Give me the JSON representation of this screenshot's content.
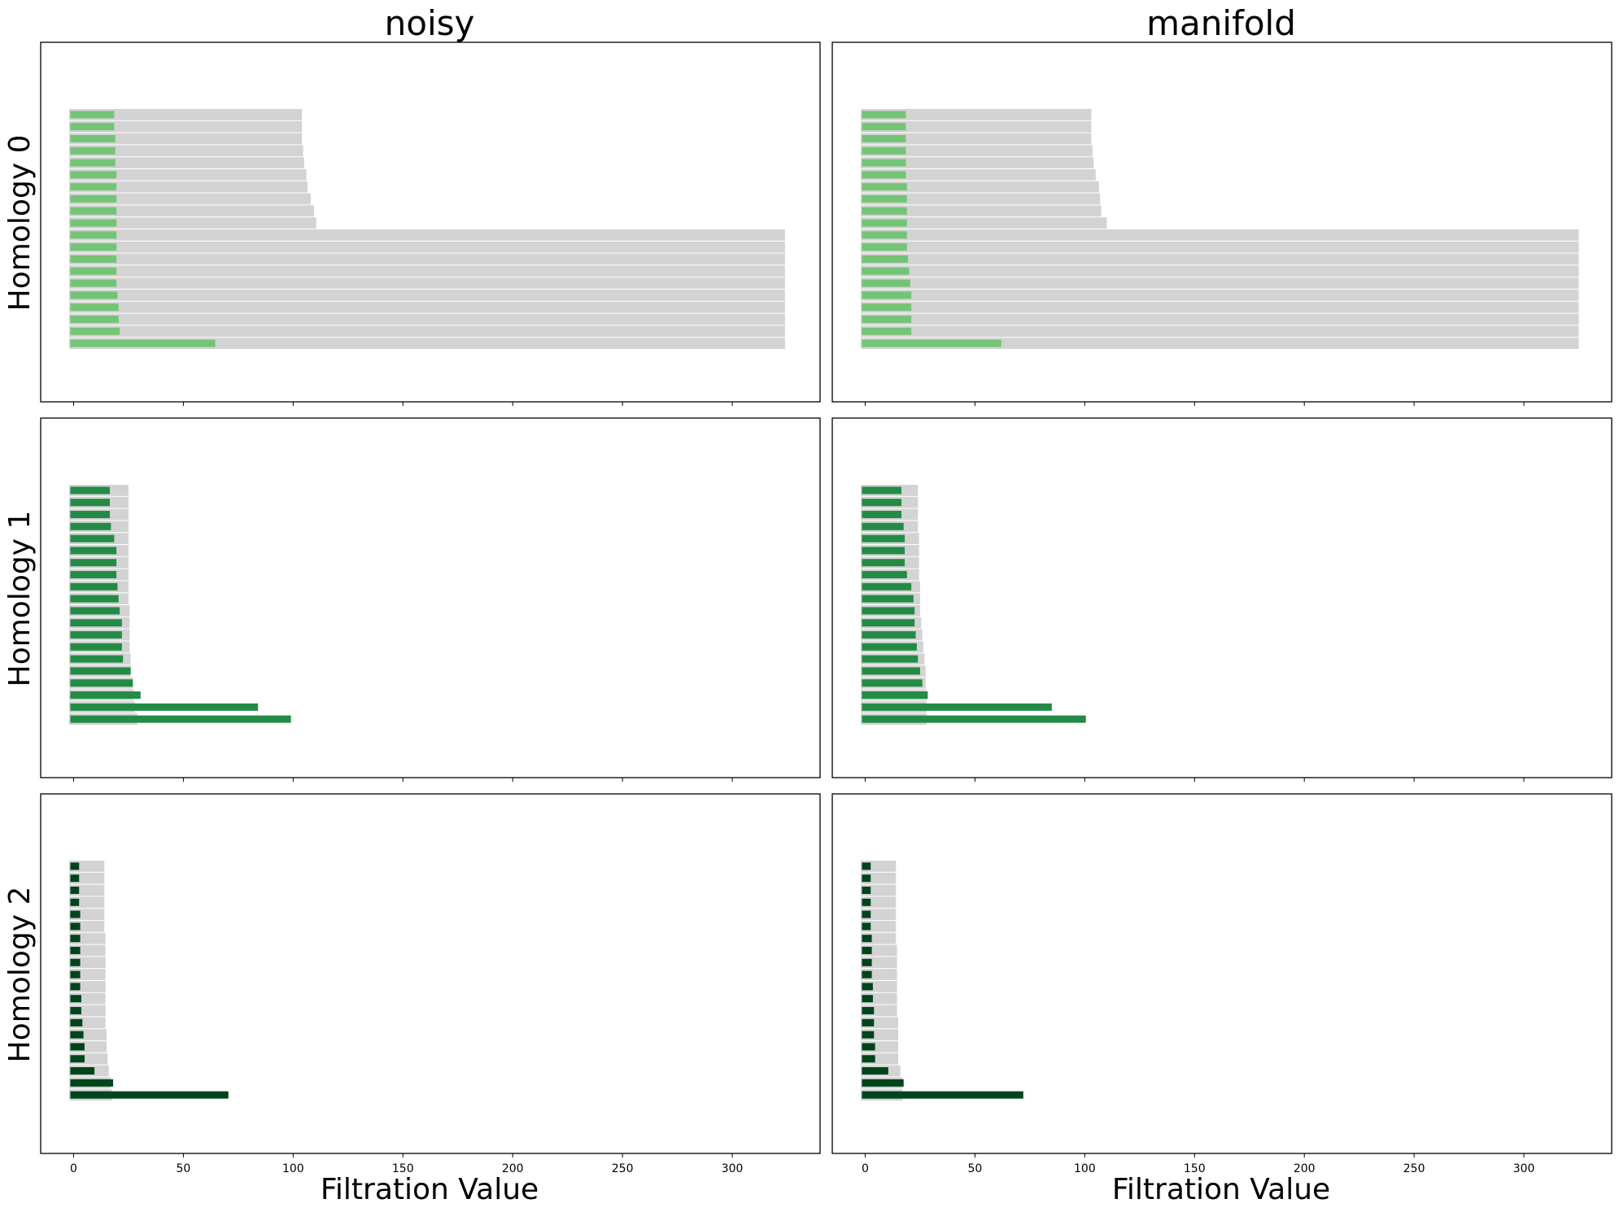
{
  "figure": {
    "column_titles": [
      "noisy",
      "manifold"
    ],
    "row_labels": [
      "Homology 0",
      "Homology 1",
      "Homology 2"
    ],
    "xlabel": "Filtration Value",
    "xticks": [
      "0",
      "50",
      "100",
      "150",
      "200",
      "250",
      "300"
    ]
  },
  "chart_data": [
    {
      "type": "bar",
      "orientation": "horizontal",
      "panel": "noisy / Homology 0",
      "xlim": [
        -15,
        340
      ],
      "background_color": "#d3d3d3",
      "bar_color": "#74c476",
      "background_bars": [
        [
          -2,
          104
        ],
        [
          -2,
          104
        ],
        [
          -2,
          104
        ],
        [
          -2,
          104.5
        ],
        [
          -2,
          105
        ],
        [
          -2,
          106
        ],
        [
          -2,
          106.5
        ],
        [
          -2,
          108
        ],
        [
          -2,
          109.5
        ],
        [
          -2,
          110.5
        ],
        [
          -2,
          324
        ],
        [
          -2,
          324
        ],
        [
          -2,
          324
        ],
        [
          -2,
          324
        ],
        [
          -2,
          324
        ],
        [
          -2,
          324
        ],
        [
          -2,
          324
        ],
        [
          -2,
          324
        ],
        [
          -2,
          324
        ],
        [
          -2,
          324
        ]
      ],
      "bars": [
        [
          -1.5,
          18.5
        ],
        [
          -1.5,
          18.5
        ],
        [
          -1.5,
          19
        ],
        [
          -1.5,
          19
        ],
        [
          -1.5,
          19
        ],
        [
          -1.5,
          19.5
        ],
        [
          -1.5,
          19.5
        ],
        [
          -1.5,
          19.5
        ],
        [
          -1.5,
          19.5
        ],
        [
          -1.5,
          19.5
        ],
        [
          -1.5,
          19.5
        ],
        [
          -1.5,
          19.5
        ],
        [
          -1.5,
          19.5
        ],
        [
          -1.5,
          19.5
        ],
        [
          -1.5,
          19.5
        ],
        [
          -1.5,
          20
        ],
        [
          -1.5,
          20.5
        ],
        [
          -1.5,
          20.5
        ],
        [
          -1.5,
          21
        ],
        [
          -1.5,
          64.5
        ]
      ]
    },
    {
      "type": "bar",
      "orientation": "horizontal",
      "panel": "manifold / Homology 0",
      "xlim": [
        -15,
        340
      ],
      "background_color": "#d3d3d3",
      "bar_color": "#74c476",
      "background_bars": [
        [
          -2,
          103
        ],
        [
          -2,
          103
        ],
        [
          -2,
          103
        ],
        [
          -2,
          103.5
        ],
        [
          -2,
          104
        ],
        [
          -2,
          105
        ],
        [
          -2,
          106.5
        ],
        [
          -2,
          107
        ],
        [
          -2,
          107.5
        ],
        [
          -2,
          110
        ],
        [
          -2,
          325
        ],
        [
          -2,
          325
        ],
        [
          -2,
          325
        ],
        [
          -2,
          325
        ],
        [
          -2,
          325
        ],
        [
          -2,
          325
        ],
        [
          -2,
          325
        ],
        [
          -2,
          325
        ],
        [
          -2,
          325
        ],
        [
          -2,
          325
        ]
      ],
      "bars": [
        [
          -1.5,
          18.5
        ],
        [
          -1.5,
          18.5
        ],
        [
          -1.5,
          18.5
        ],
        [
          -1.5,
          18.5
        ],
        [
          -1.5,
          18.5
        ],
        [
          -1.5,
          18.5
        ],
        [
          -1.5,
          19
        ],
        [
          -1.5,
          19
        ],
        [
          -1.5,
          19
        ],
        [
          -1.5,
          19
        ],
        [
          -1.5,
          19
        ],
        [
          -1.5,
          19
        ],
        [
          -1.5,
          19.5
        ],
        [
          -1.5,
          20
        ],
        [
          -1.5,
          20.5
        ],
        [
          -1.5,
          21
        ],
        [
          -1.5,
          21
        ],
        [
          -1.5,
          21
        ],
        [
          -1.5,
          21
        ],
        [
          -1.5,
          62
        ]
      ]
    },
    {
      "type": "bar",
      "orientation": "horizontal",
      "panel": "noisy / Homology 1",
      "xlim": [
        -15,
        340
      ],
      "background_color": "#d3d3d3",
      "bar_color": "#238b45",
      "background_bars": [
        [
          -2,
          25
        ],
        [
          -2,
          25
        ],
        [
          -2,
          25
        ],
        [
          -2,
          25
        ],
        [
          -2,
          25
        ],
        [
          -2,
          25
        ],
        [
          -2,
          25
        ],
        [
          -2,
          25
        ],
        [
          -2,
          25
        ],
        [
          -2,
          25
        ],
        [
          -2,
          25.5
        ],
        [
          -2,
          25.5
        ],
        [
          -2,
          25.5
        ],
        [
          -2,
          25.5
        ],
        [
          -2,
          26
        ],
        [
          -2,
          26
        ],
        [
          -2,
          27
        ],
        [
          -2,
          27.5
        ],
        [
          -2,
          28
        ],
        [
          -2,
          29
        ]
      ],
      "bars": [
        [
          -1.5,
          16.5
        ],
        [
          -1.5,
          16.5
        ],
        [
          -1.5,
          16.5
        ],
        [
          -1.5,
          17
        ],
        [
          -1.5,
          18.5
        ],
        [
          -1.5,
          19.5
        ],
        [
          -1.5,
          19.5
        ],
        [
          -1.5,
          19.5
        ],
        [
          -1.5,
          20
        ],
        [
          -1.5,
          20.5
        ],
        [
          -1.5,
          21
        ],
        [
          -1.5,
          22
        ],
        [
          -1.5,
          22
        ],
        [
          -1.5,
          22
        ],
        [
          -1.5,
          22.5
        ],
        [
          -1.5,
          26
        ],
        [
          -1.5,
          27
        ],
        [
          -1.5,
          30.5
        ],
        [
          -1.5,
          84
        ],
        [
          -1.5,
          99
        ]
      ]
    },
    {
      "type": "bar",
      "orientation": "horizontal",
      "panel": "manifold / Homology 1",
      "xlim": [
        -15,
        340
      ],
      "background_color": "#d3d3d3",
      "bar_color": "#238b45",
      "background_bars": [
        [
          -2,
          24
        ],
        [
          -2,
          24
        ],
        [
          -2,
          24
        ],
        [
          -2,
          24
        ],
        [
          -2,
          24.5
        ],
        [
          -2,
          24.5
        ],
        [
          -2,
          24.5
        ],
        [
          -2,
          24.5
        ],
        [
          -2,
          25
        ],
        [
          -2,
          25
        ],
        [
          -2,
          25
        ],
        [
          -2,
          25.5
        ],
        [
          -2,
          26
        ],
        [
          -2,
          26.5
        ],
        [
          -2,
          27
        ],
        [
          -2,
          27.5
        ],
        [
          -2,
          27.5
        ],
        [
          -2,
          28
        ],
        [
          -2,
          28
        ],
        [
          -2,
          28
        ]
      ],
      "bars": [
        [
          -1.5,
          16.5
        ],
        [
          -1.5,
          16.5
        ],
        [
          -1.5,
          16.5
        ],
        [
          -1.5,
          17.5
        ],
        [
          -1.5,
          18
        ],
        [
          -1.5,
          18
        ],
        [
          -1.5,
          18
        ],
        [
          -1.5,
          19
        ],
        [
          -1.5,
          21
        ],
        [
          -1.5,
          22
        ],
        [
          -1.5,
          22.5
        ],
        [
          -1.5,
          22.5
        ],
        [
          -1.5,
          23
        ],
        [
          -1.5,
          23.5
        ],
        [
          -1.5,
          24
        ],
        [
          -1.5,
          25
        ],
        [
          -1.5,
          26
        ],
        [
          -1.5,
          28.5
        ],
        [
          -1.5,
          85
        ],
        [
          -1.5,
          100.5
        ]
      ]
    },
    {
      "type": "bar",
      "orientation": "horizontal",
      "panel": "noisy / Homology 2",
      "xlim": [
        -15,
        340
      ],
      "background_color": "#d3d3d3",
      "bar_color": "#00441b",
      "background_bars": [
        [
          -2,
          14
        ],
        [
          -2,
          14
        ],
        [
          -2,
          14
        ],
        [
          -2,
          14
        ],
        [
          -2,
          14
        ],
        [
          -2,
          14
        ],
        [
          -2,
          14.5
        ],
        [
          -2,
          14.5
        ],
        [
          -2,
          14.5
        ],
        [
          -2,
          14.5
        ],
        [
          -2,
          14.5
        ],
        [
          -2,
          14.5
        ],
        [
          -2,
          14.5
        ],
        [
          -2,
          14.5
        ],
        [
          -2,
          15
        ],
        [
          -2,
          15
        ],
        [
          -2,
          15.5
        ],
        [
          -2,
          16
        ],
        [
          -2,
          17
        ],
        [
          -2,
          17.5
        ]
      ],
      "bars": [
        [
          -1.5,
          2.5
        ],
        [
          -1.5,
          2.5
        ],
        [
          -1.5,
          2.5
        ],
        [
          -1.5,
          2.5
        ],
        [
          -1.5,
          3
        ],
        [
          -1.5,
          3
        ],
        [
          -1.5,
          3
        ],
        [
          -1.5,
          3
        ],
        [
          -1.5,
          3
        ],
        [
          -1.5,
          3
        ],
        [
          -1.5,
          3
        ],
        [
          -1.5,
          3.5
        ],
        [
          -1.5,
          3.5
        ],
        [
          -1.5,
          4
        ],
        [
          -1.5,
          4.5
        ],
        [
          -1.5,
          5
        ],
        [
          -1.5,
          5
        ],
        [
          -1.5,
          9.5
        ],
        [
          -1.5,
          18
        ],
        [
          -1.5,
          70.5
        ]
      ]
    },
    {
      "type": "bar",
      "orientation": "horizontal",
      "panel": "manifold / Homology 2",
      "xlim": [
        -15,
        340
      ],
      "background_color": "#d3d3d3",
      "bar_color": "#00441b",
      "background_bars": [
        [
          -2,
          14
        ],
        [
          -2,
          14
        ],
        [
          -2,
          14
        ],
        [
          -2,
          14
        ],
        [
          -2,
          14
        ],
        [
          -2,
          14
        ],
        [
          -2,
          14
        ],
        [
          -2,
          14.5
        ],
        [
          -2,
          14.5
        ],
        [
          -2,
          14.5
        ],
        [
          -2,
          14.5
        ],
        [
          -2,
          14.5
        ],
        [
          -2,
          14.5
        ],
        [
          -2,
          15
        ],
        [
          -2,
          15
        ],
        [
          -2,
          15
        ],
        [
          -2,
          15
        ],
        [
          -2,
          16
        ],
        [
          -2,
          17
        ],
        [
          -2,
          17
        ]
      ],
      "bars": [
        [
          -1.5,
          2.5
        ],
        [
          -1.5,
          2.5
        ],
        [
          -1.5,
          2.5
        ],
        [
          -1.5,
          2.5
        ],
        [
          -1.5,
          2.5
        ],
        [
          -1.5,
          2.5
        ],
        [
          -1.5,
          3
        ],
        [
          -1.5,
          3
        ],
        [
          -1.5,
          3
        ],
        [
          -1.5,
          3
        ],
        [
          -1.5,
          3.5
        ],
        [
          -1.5,
          3.5
        ],
        [
          -1.5,
          4
        ],
        [
          -1.5,
          4
        ],
        [
          -1.5,
          4
        ],
        [
          -1.5,
          4.5
        ],
        [
          -1.5,
          4.5
        ],
        [
          -1.5,
          10.5
        ],
        [
          -1.5,
          17.5
        ],
        [
          -1.5,
          72
        ]
      ]
    }
  ]
}
